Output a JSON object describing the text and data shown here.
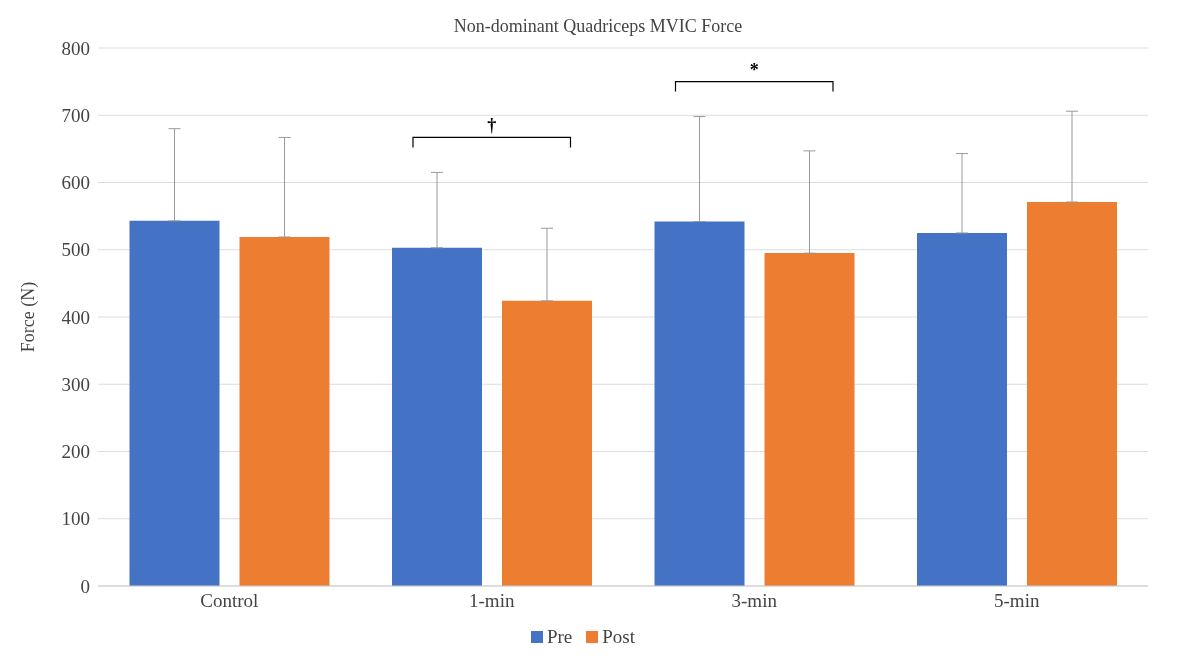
{
  "chart_data": {
    "type": "bar",
    "title": "Non-dominant Quadriceps MVIC Force",
    "ylabel": "Force (N)",
    "categories": [
      "Control",
      "1-min",
      "3-min",
      "5-min"
    ],
    "series": [
      {
        "name": "Pre",
        "color": "#4472c4",
        "values": [
          543,
          503,
          542,
          525
        ],
        "errors": [
          [
            543,
            680
          ],
          [
            503,
            615
          ],
          [
            542,
            698
          ],
          [
            525,
            643
          ]
        ]
      },
      {
        "name": "Post",
        "color": "#ed7d31",
        "values": [
          519,
          424,
          495,
          571
        ],
        "errors": [
          [
            519,
            667
          ],
          [
            424,
            532
          ],
          [
            495,
            647
          ],
          [
            571,
            706
          ]
        ]
      }
    ],
    "ylim": [
      0,
      800
    ],
    "yticks": [
      0,
      100,
      200,
      300,
      400,
      500,
      600,
      700,
      800
    ],
    "grid": "y",
    "legend": "bottom",
    "annotations": [
      "†",
      "*"
    ]
  }
}
